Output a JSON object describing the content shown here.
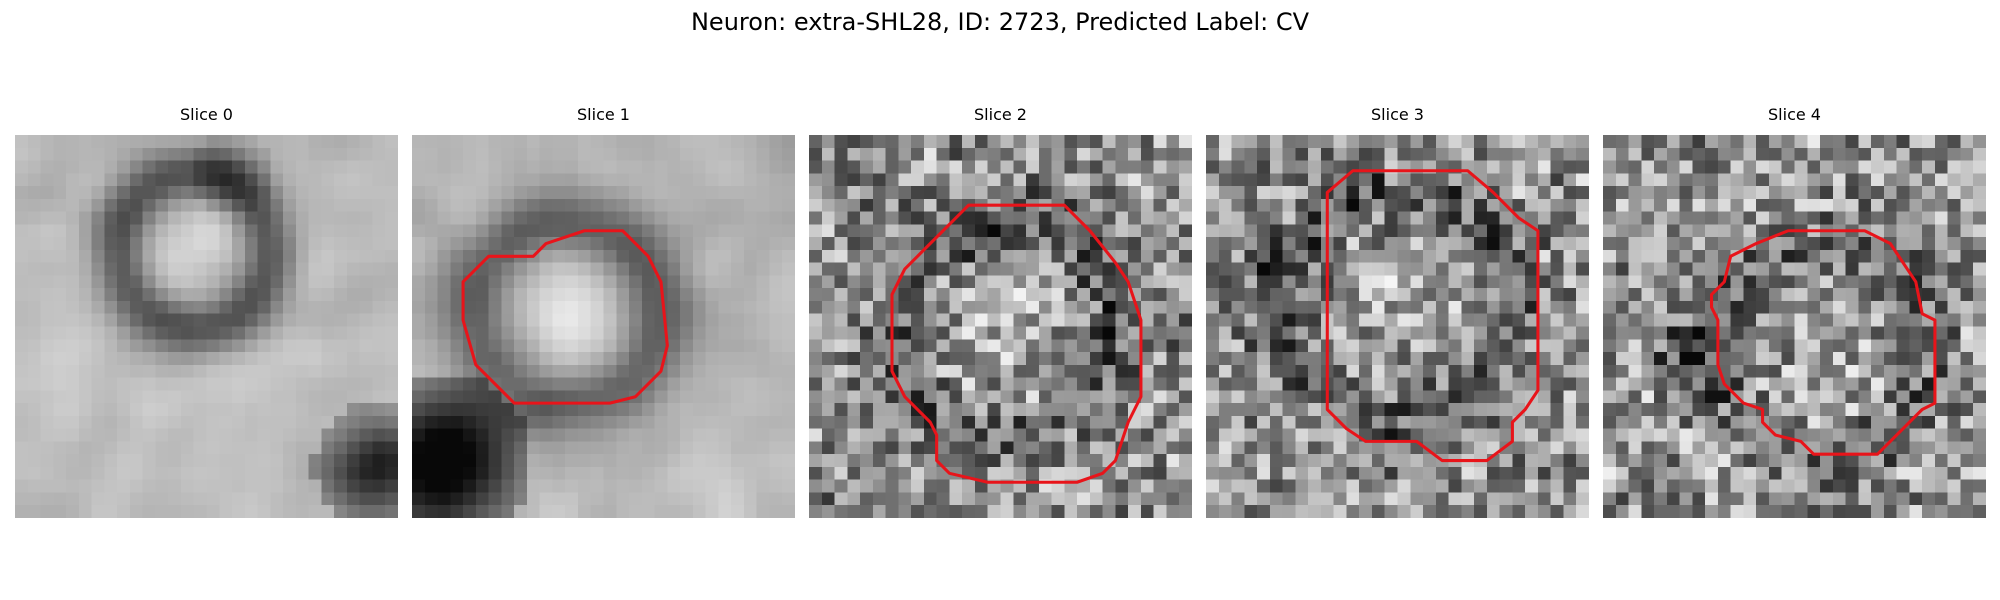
{
  "figure": {
    "title": "Neuron: extra-SHL28, ID: 2723, Predicted Label: CV"
  },
  "colors": {
    "contour": "#e8141a",
    "background": "#ffffff"
  },
  "slices": [
    {
      "label": "Slice 0",
      "has_contour": false
    },
    {
      "label": "Slice 1",
      "has_contour": true
    },
    {
      "label": "Slice 2",
      "has_contour": true
    },
    {
      "label": "Slice 3",
      "has_contour": true
    },
    {
      "label": "Slice 4",
      "has_contour": true
    }
  ]
}
